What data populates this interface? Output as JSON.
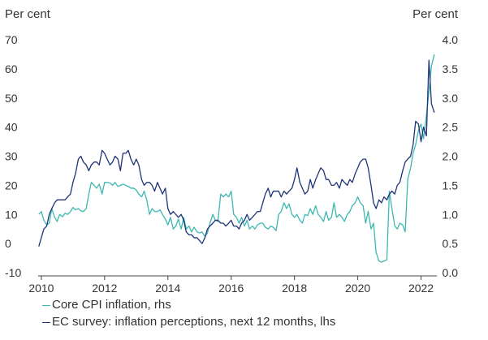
{
  "chart_data": {
    "type": "line",
    "left_axis_unit": "Per cent",
    "right_axis_unit": "Per cent",
    "left_axis": {
      "min": -10,
      "max": 70,
      "ticks": [
        -10,
        0,
        10,
        20,
        30,
        40,
        50,
        60,
        70
      ]
    },
    "right_axis": {
      "min": 0.0,
      "max": 4.0,
      "ticks": [
        "0.0",
        "0.5",
        "1.0",
        "1.5",
        "2.0",
        "2.5",
        "3.0",
        "3.5",
        "4.0"
      ]
    },
    "x_axis": {
      "min": 2009.9,
      "max": 2022.5,
      "ticks": [
        "2010",
        "2012",
        "2014",
        "2016",
        "2018",
        "2020",
        "2022"
      ]
    },
    "grid": false,
    "legend_placement": "bottom-left",
    "colors": {
      "core_cpi": "#3db8b0",
      "ec_survey": "#1f3478",
      "axis": "#444444"
    },
    "series": [
      {
        "name": "Core CPI inflation, rhs",
        "axis": "right",
        "points": [
          [
            2009.92,
            1.0
          ],
          [
            2010.0,
            1.05
          ],
          [
            2010.08,
            0.9
          ],
          [
            2010.17,
            0.82
          ],
          [
            2010.25,
            0.85
          ],
          [
            2010.33,
            1.1
          ],
          [
            2010.42,
            0.95
          ],
          [
            2010.5,
            0.88
          ],
          [
            2010.58,
            1.0
          ],
          [
            2010.67,
            0.96
          ],
          [
            2010.75,
            1.02
          ],
          [
            2010.83,
            1.0
          ],
          [
            2010.92,
            1.05
          ],
          [
            2011.0,
            1.12
          ],
          [
            2011.08,
            1.08
          ],
          [
            2011.17,
            1.1
          ],
          [
            2011.25,
            1.06
          ],
          [
            2011.33,
            1.05
          ],
          [
            2011.42,
            1.1
          ],
          [
            2011.5,
            1.35
          ],
          [
            2011.58,
            1.55
          ],
          [
            2011.67,
            1.5
          ],
          [
            2011.75,
            1.45
          ],
          [
            2011.83,
            1.52
          ],
          [
            2011.92,
            1.35
          ],
          [
            2012.0,
            1.55
          ],
          [
            2012.08,
            1.55
          ],
          [
            2012.17,
            1.54
          ],
          [
            2012.25,
            1.5
          ],
          [
            2012.33,
            1.55
          ],
          [
            2012.42,
            1.48
          ],
          [
            2012.5,
            1.5
          ],
          [
            2012.58,
            1.52
          ],
          [
            2012.67,
            1.5
          ],
          [
            2012.75,
            1.48
          ],
          [
            2012.83,
            1.45
          ],
          [
            2012.92,
            1.45
          ],
          [
            2013.0,
            1.42
          ],
          [
            2013.08,
            1.35
          ],
          [
            2013.17,
            1.3
          ],
          [
            2013.25,
            1.4
          ],
          [
            2013.33,
            1.25
          ],
          [
            2013.42,
            1.0
          ],
          [
            2013.5,
            1.1
          ],
          [
            2013.58,
            1.05
          ],
          [
            2013.67,
            1.05
          ],
          [
            2013.75,
            1.08
          ],
          [
            2013.83,
            1.0
          ],
          [
            2013.92,
            0.92
          ],
          [
            2014.0,
            0.82
          ],
          [
            2014.08,
            0.95
          ],
          [
            2014.17,
            0.75
          ],
          [
            2014.25,
            0.8
          ],
          [
            2014.33,
            0.92
          ],
          [
            2014.42,
            0.75
          ],
          [
            2014.5,
            0.95
          ],
          [
            2014.58,
            0.75
          ],
          [
            2014.67,
            0.8
          ],
          [
            2014.75,
            0.7
          ],
          [
            2014.83,
            0.78
          ],
          [
            2014.92,
            0.7
          ],
          [
            2015.0,
            0.68
          ],
          [
            2015.08,
            0.7
          ],
          [
            2015.17,
            0.62
          ],
          [
            2015.25,
            0.68
          ],
          [
            2015.33,
            0.85
          ],
          [
            2015.42,
            1.0
          ],
          [
            2015.5,
            0.9
          ],
          [
            2015.58,
            0.88
          ],
          [
            2015.67,
            1.35
          ],
          [
            2015.75,
            1.3
          ],
          [
            2015.83,
            1.35
          ],
          [
            2015.92,
            1.3
          ],
          [
            2016.0,
            1.4
          ],
          [
            2016.08,
            1.0
          ],
          [
            2016.17,
            0.95
          ],
          [
            2016.25,
            0.85
          ],
          [
            2016.33,
            0.95
          ],
          [
            2016.42,
            0.8
          ],
          [
            2016.5,
            0.9
          ],
          [
            2016.58,
            0.75
          ],
          [
            2016.67,
            0.8
          ],
          [
            2016.75,
            0.75
          ],
          [
            2016.83,
            0.82
          ],
          [
            2016.92,
            0.85
          ],
          [
            2017.0,
            0.85
          ],
          [
            2017.08,
            0.78
          ],
          [
            2017.17,
            0.75
          ],
          [
            2017.25,
            0.8
          ],
          [
            2017.33,
            0.78
          ],
          [
            2017.42,
            0.72
          ],
          [
            2017.5,
            1.0
          ],
          [
            2017.58,
            1.05
          ],
          [
            2017.67,
            1.2
          ],
          [
            2017.75,
            1.1
          ],
          [
            2017.83,
            1.18
          ],
          [
            2017.92,
            1.0
          ],
          [
            2018.0,
            0.95
          ],
          [
            2018.08,
            1.0
          ],
          [
            2018.17,
            0.9
          ],
          [
            2018.25,
            0.85
          ],
          [
            2018.33,
            1.0
          ],
          [
            2018.42,
            0.98
          ],
          [
            2018.5,
            1.1
          ],
          [
            2018.58,
            1.0
          ],
          [
            2018.67,
            1.15
          ],
          [
            2018.75,
            1.0
          ],
          [
            2018.83,
            0.95
          ],
          [
            2018.92,
            0.88
          ],
          [
            2019.0,
            1.05
          ],
          [
            2019.08,
            0.9
          ],
          [
            2019.17,
            0.95
          ],
          [
            2019.25,
            1.2
          ],
          [
            2019.33,
            0.95
          ],
          [
            2019.42,
            1.0
          ],
          [
            2019.5,
            0.95
          ],
          [
            2019.58,
            0.88
          ],
          [
            2019.67,
            1.0
          ],
          [
            2019.75,
            1.05
          ],
          [
            2019.83,
            1.15
          ],
          [
            2019.92,
            1.2
          ],
          [
            2020.0,
            1.3
          ],
          [
            2020.08,
            1.2
          ],
          [
            2020.17,
            1.15
          ],
          [
            2020.25,
            0.85
          ],
          [
            2020.33,
            1.05
          ],
          [
            2020.42,
            0.75
          ],
          [
            2020.5,
            0.85
          ],
          [
            2020.58,
            0.35
          ],
          [
            2020.67,
            0.2
          ],
          [
            2020.75,
            0.18
          ],
          [
            2020.83,
            0.2
          ],
          [
            2020.92,
            0.22
          ],
          [
            2021.0,
            1.4
          ],
          [
            2021.08,
            1.1
          ],
          [
            2021.17,
            0.8
          ],
          [
            2021.25,
            0.75
          ],
          [
            2021.33,
            0.85
          ],
          [
            2021.42,
            0.82
          ],
          [
            2021.5,
            0.7
          ],
          [
            2021.58,
            1.6
          ],
          [
            2021.67,
            1.8
          ],
          [
            2021.75,
            2.05
          ],
          [
            2021.83,
            2.2
          ],
          [
            2021.92,
            2.45
          ],
          [
            2022.0,
            2.55
          ],
          [
            2022.08,
            2.3
          ],
          [
            2022.17,
            2.7
          ],
          [
            2022.25,
            3.1
          ],
          [
            2022.33,
            3.55
          ],
          [
            2022.42,
            3.75
          ]
        ]
      },
      {
        "name": "EC survey: inflation perceptions, next 12 months, lhs",
        "axis": "left",
        "points": [
          [
            2009.92,
            -1
          ],
          [
            2010.0,
            2
          ],
          [
            2010.08,
            5
          ],
          [
            2010.17,
            6
          ],
          [
            2010.25,
            10
          ],
          [
            2010.33,
            12
          ],
          [
            2010.42,
            14
          ],
          [
            2010.5,
            15
          ],
          [
            2010.58,
            15
          ],
          [
            2010.67,
            15
          ],
          [
            2010.75,
            15
          ],
          [
            2010.83,
            16
          ],
          [
            2010.92,
            17
          ],
          [
            2011.0,
            21
          ],
          [
            2011.08,
            24
          ],
          [
            2011.17,
            29
          ],
          [
            2011.25,
            30
          ],
          [
            2011.33,
            28
          ],
          [
            2011.42,
            27
          ],
          [
            2011.5,
            25
          ],
          [
            2011.58,
            27
          ],
          [
            2011.67,
            28
          ],
          [
            2011.75,
            28
          ],
          [
            2011.83,
            27
          ],
          [
            2011.92,
            32
          ],
          [
            2012.0,
            31
          ],
          [
            2012.08,
            29
          ],
          [
            2012.17,
            27
          ],
          [
            2012.25,
            28
          ],
          [
            2012.33,
            30
          ],
          [
            2012.42,
            29
          ],
          [
            2012.5,
            25
          ],
          [
            2012.58,
            31
          ],
          [
            2012.67,
            31
          ],
          [
            2012.75,
            32
          ],
          [
            2012.83,
            29
          ],
          [
            2012.92,
            27
          ],
          [
            2013.0,
            29
          ],
          [
            2013.08,
            27
          ],
          [
            2013.17,
            22
          ],
          [
            2013.25,
            20
          ],
          [
            2013.33,
            21
          ],
          [
            2013.42,
            21
          ],
          [
            2013.5,
            20
          ],
          [
            2013.58,
            18
          ],
          [
            2013.67,
            21
          ],
          [
            2013.75,
            19
          ],
          [
            2013.83,
            17
          ],
          [
            2013.92,
            19
          ],
          [
            2014.0,
            12
          ],
          [
            2014.08,
            10
          ],
          [
            2014.17,
            11
          ],
          [
            2014.25,
            10
          ],
          [
            2014.33,
            9
          ],
          [
            2014.42,
            10
          ],
          [
            2014.5,
            8
          ],
          [
            2014.58,
            4
          ],
          [
            2014.67,
            3
          ],
          [
            2014.75,
            3
          ],
          [
            2014.83,
            2
          ],
          [
            2014.92,
            2
          ],
          [
            2015.0,
            1
          ],
          [
            2015.08,
            0
          ],
          [
            2015.17,
            2
          ],
          [
            2015.25,
            5
          ],
          [
            2015.33,
            6
          ],
          [
            2015.42,
            7
          ],
          [
            2015.5,
            8
          ],
          [
            2015.58,
            8
          ],
          [
            2015.67,
            7
          ],
          [
            2015.75,
            7
          ],
          [
            2015.83,
            6
          ],
          [
            2015.92,
            7
          ],
          [
            2016.0,
            8
          ],
          [
            2016.08,
            6
          ],
          [
            2016.17,
            6
          ],
          [
            2016.25,
            5
          ],
          [
            2016.33,
            7
          ],
          [
            2016.42,
            8
          ],
          [
            2016.5,
            10
          ],
          [
            2016.58,
            8
          ],
          [
            2016.67,
            9
          ],
          [
            2016.75,
            10
          ],
          [
            2016.83,
            11
          ],
          [
            2016.92,
            11
          ],
          [
            2017.0,
            14
          ],
          [
            2017.08,
            17
          ],
          [
            2017.17,
            19
          ],
          [
            2017.25,
            16
          ],
          [
            2017.33,
            18
          ],
          [
            2017.42,
            18
          ],
          [
            2017.5,
            18
          ],
          [
            2017.58,
            16
          ],
          [
            2017.67,
            18
          ],
          [
            2017.75,
            17
          ],
          [
            2017.83,
            18
          ],
          [
            2017.92,
            19
          ],
          [
            2018.0,
            22
          ],
          [
            2018.08,
            26
          ],
          [
            2018.17,
            21
          ],
          [
            2018.25,
            19
          ],
          [
            2018.33,
            17
          ],
          [
            2018.42,
            18
          ],
          [
            2018.5,
            22
          ],
          [
            2018.58,
            19
          ],
          [
            2018.67,
            22
          ],
          [
            2018.75,
            24
          ],
          [
            2018.83,
            26
          ],
          [
            2018.92,
            25
          ],
          [
            2019.0,
            22
          ],
          [
            2019.08,
            22
          ],
          [
            2019.17,
            20
          ],
          [
            2019.25,
            20
          ],
          [
            2019.33,
            21
          ],
          [
            2019.42,
            19
          ],
          [
            2019.5,
            22
          ],
          [
            2019.58,
            21
          ],
          [
            2019.67,
            20
          ],
          [
            2019.75,
            22
          ],
          [
            2019.83,
            21
          ],
          [
            2019.92,
            24
          ],
          [
            2020.0,
            26
          ],
          [
            2020.08,
            28
          ],
          [
            2020.17,
            29
          ],
          [
            2020.25,
            29
          ],
          [
            2020.33,
            26
          ],
          [
            2020.42,
            20
          ],
          [
            2020.5,
            14
          ],
          [
            2020.58,
            12
          ],
          [
            2020.67,
            15
          ],
          [
            2020.75,
            14
          ],
          [
            2020.83,
            16
          ],
          [
            2020.92,
            15
          ],
          [
            2021.0,
            17
          ],
          [
            2021.08,
            18
          ],
          [
            2021.17,
            17
          ],
          [
            2021.25,
            20
          ],
          [
            2021.33,
            21
          ],
          [
            2021.42,
            25
          ],
          [
            2021.5,
            28
          ],
          [
            2021.58,
            29
          ],
          [
            2021.67,
            30
          ],
          [
            2021.75,
            34
          ],
          [
            2021.83,
            42
          ],
          [
            2021.92,
            41
          ],
          [
            2022.0,
            35
          ],
          [
            2022.08,
            40
          ],
          [
            2022.17,
            37
          ],
          [
            2022.25,
            63
          ],
          [
            2022.33,
            48
          ],
          [
            2022.42,
            45
          ]
        ]
      }
    ]
  }
}
